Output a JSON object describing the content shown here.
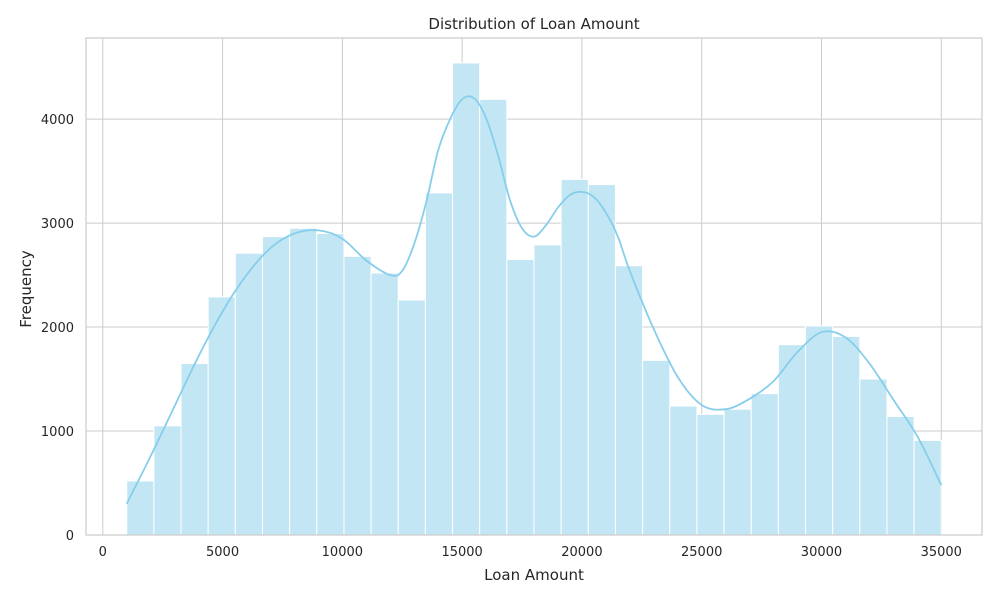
{
  "chart_data": {
    "type": "bar",
    "title": "Distribution of Loan Amount",
    "xlabel": "Loan Amount",
    "ylabel": "Frequency",
    "xlim": [
      -700,
      36700
    ],
    "ylim": [
      0,
      4780
    ],
    "xticks": [
      0,
      5000,
      10000,
      15000,
      20000,
      25000,
      30000,
      35000
    ],
    "yticks": [
      0,
      1000,
      2000,
      3000,
      4000
    ],
    "grid": true,
    "bin_edges": [
      1000,
      2133,
      3267,
      4400,
      5533,
      6667,
      7800,
      8933,
      10067,
      11200,
      12333,
      13467,
      14600,
      15733,
      16867,
      18000,
      19133,
      20267,
      21400,
      22533,
      23667,
      24800,
      25933,
      27067,
      28200,
      29333,
      30467,
      31600,
      32733,
      33867,
      35000
    ],
    "values": [
      520,
      1050,
      1650,
      2290,
      2710,
      2870,
      2950,
      2900,
      2680,
      2520,
      2260,
      3290,
      4540,
      4190,
      2650,
      2790,
      3420,
      3370,
      2590,
      1680,
      1240,
      1160,
      1210,
      1360,
      1830,
      2010,
      1910,
      1500,
      1140,
      910
    ],
    "kde": {
      "x": [
        1000,
        2000,
        3000,
        4000,
        5000,
        6000,
        7000,
        8000,
        9000,
        10000,
        11000,
        12000,
        12500,
        13000,
        13500,
        14000,
        14500,
        15000,
        15500,
        16000,
        16500,
        17000,
        17500,
        18000,
        18500,
        19000,
        19500,
        20000,
        20500,
        21000,
        21500,
        22000,
        23000,
        24000,
        25000,
        26000,
        27000,
        28000,
        29000,
        30000,
        31000,
        32000,
        33000,
        34000,
        35000
      ],
      "y": [
        300,
        760,
        1240,
        1720,
        2150,
        2500,
        2760,
        2900,
        2930,
        2850,
        2640,
        2500,
        2540,
        2800,
        3200,
        3700,
        4000,
        4190,
        4200,
        4010,
        3650,
        3220,
        2950,
        2870,
        2980,
        3150,
        3270,
        3300,
        3250,
        3100,
        2870,
        2540,
        1980,
        1520,
        1250,
        1210,
        1310,
        1480,
        1760,
        1950,
        1900,
        1650,
        1300,
        950,
        480
      ]
    },
    "colors": {
      "bar": "#c3e6f4",
      "line": "#87ceeb"
    }
  }
}
